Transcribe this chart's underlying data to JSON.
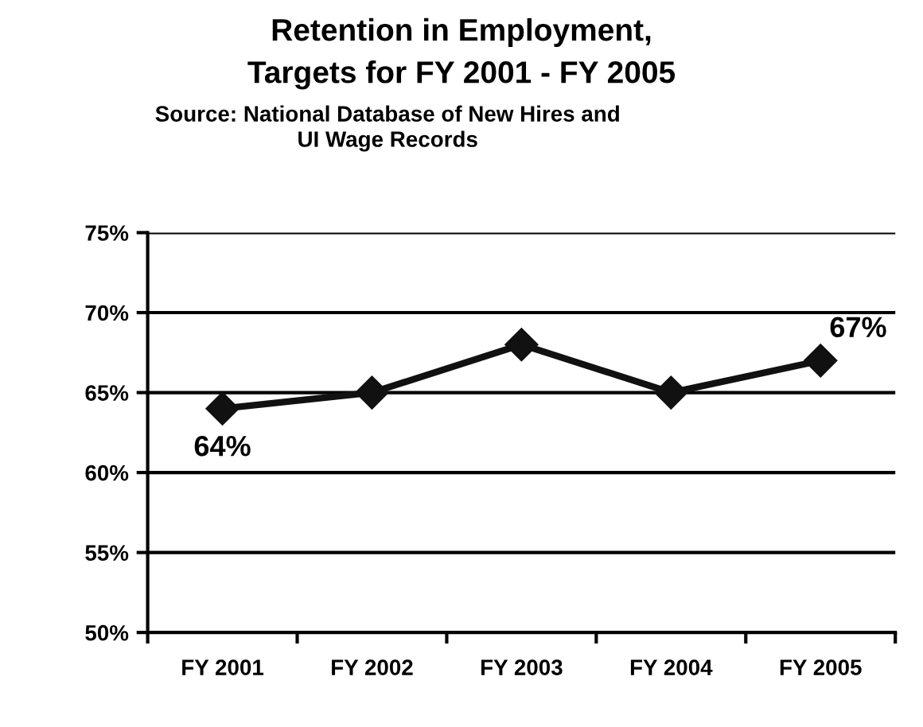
{
  "chart_data": {
    "type": "line",
    "title": "Retention in Employment,\nTargets for FY 2001 - FY 2005",
    "subtitle": "Source: National Database of New Hires and\nUI Wage Records",
    "categories": [
      "FY 2001",
      "FY 2002",
      "FY 2003",
      "FY 2004",
      "FY 2005"
    ],
    "series": [
      {
        "color": "#111111",
        "values": [
          64,
          65,
          68,
          65,
          67
        ],
        "value_labels": [
          "64%",
          null,
          null,
          null,
          "67%"
        ]
      }
    ],
    "ylim": [
      50,
      75
    ],
    "yticks": [
      {
        "value": 50,
        "label": "50%"
      },
      {
        "value": 55,
        "label": "55%"
      },
      {
        "value": 60,
        "label": "60%"
      },
      {
        "value": 65,
        "label": "65%"
      },
      {
        "value": 70,
        "label": "70%"
      },
      {
        "value": 75,
        "label": "75%"
      }
    ],
    "grid": "y",
    "marker": "diamond",
    "line_style": "solid"
  }
}
